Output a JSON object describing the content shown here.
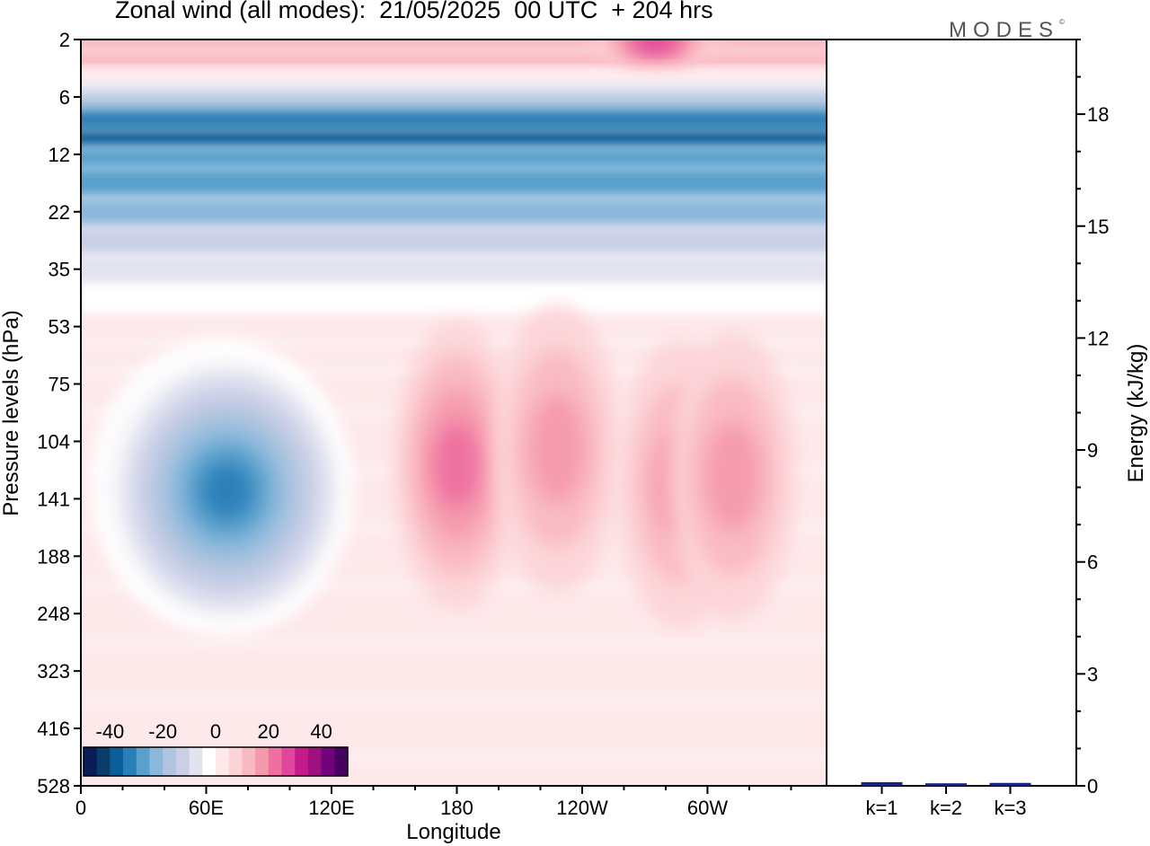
{
  "header": {
    "title": "Zonal wind (all modes):  21/05/2025  00 UTC  + 204 hrs",
    "logo": "MODES",
    "logo_mark": "©"
  },
  "colors": {
    "scale": [
      "#081d58",
      "#0b3d6b",
      "#0a5f98",
      "#2b7fb8",
      "#5aa0cc",
      "#8cb9db",
      "#b0c4df",
      "#c9cfe6",
      "#e3e3f0",
      "#ffffff",
      "#fde8ea",
      "#fcd4d8",
      "#f9b9c1",
      "#f59aad",
      "#ee6fa0",
      "#e0479a",
      "#c51b8a",
      "#9e0f80",
      "#73037a",
      "#4a0063"
    ],
    "bar": "#1a237e",
    "frame": "#000000"
  },
  "chart_data": [
    {
      "type": "heatmap",
      "title": "Zonal wind (all modes):  21/05/2025  00 UTC  + 204 hrs",
      "xlabel": "Longitude",
      "ylabel": "Pressure levels (hPa)",
      "x_ticks": [
        "0",
        "60E",
        "120E",
        "180",
        "120W",
        "60W"
      ],
      "x_tick_values": [
        0,
        60,
        120,
        180,
        240,
        300
      ],
      "xlim": [
        0,
        357
      ],
      "y_ticks": [
        "2",
        "6",
        "12",
        "22",
        "35",
        "53",
        "75",
        "104",
        "141",
        "188",
        "248",
        "323",
        "416",
        "528"
      ],
      "y_scale": "level index (ticks at every pressure level, top to bottom)",
      "colorbar": {
        "ticks": [
          "-40",
          "-20",
          "0",
          "20",
          "40"
        ],
        "tick_values": [
          -40,
          -20,
          0,
          20,
          40
        ],
        "range": [
          -50,
          50
        ],
        "step": 5,
        "placement": "bottom-left inside plot"
      },
      "bands": [
        {
          "p": 2,
          "u": 12
        },
        {
          "p": 3,
          "u": 10
        },
        {
          "p": 4,
          "u": 2
        },
        {
          "p": 5,
          "u": -8
        },
        {
          "p": 6,
          "u": -20
        },
        {
          "p": 8,
          "u": -32
        },
        {
          "p": 10,
          "u": -36
        },
        {
          "p": 12,
          "u": -30
        },
        {
          "p": 16,
          "u": -26
        },
        {
          "p": 22,
          "u": -24
        },
        {
          "p": 28,
          "u": -15
        },
        {
          "p": 35,
          "u": -8
        },
        {
          "p": 44,
          "u": -3
        },
        {
          "p": 53,
          "u": 0
        },
        {
          "p": 64,
          "u": 1
        },
        {
          "p": 75,
          "u": 1
        },
        {
          "p": 104,
          "u": 1
        },
        {
          "p": 141,
          "u": 1
        },
        {
          "p": 188,
          "u": 1
        },
        {
          "p": 248,
          "u": 0
        },
        {
          "p": 323,
          "u": 0
        },
        {
          "p": 416,
          "u": 0
        },
        {
          "p": 528,
          "u": 0
        }
      ],
      "features": [
        {
          "lon": 65,
          "p": 130,
          "u": -30
        },
        {
          "lon": 70,
          "p": 135,
          "u": -35
        },
        {
          "lon": 180,
          "p": 118,
          "u": 18
        },
        {
          "lon": 228,
          "p": 108,
          "u": 17
        },
        {
          "lon": 287,
          "p": 130,
          "u": 17
        },
        {
          "lon": 312,
          "p": 125,
          "u": 16
        },
        {
          "lon": 275,
          "p": 2,
          "u": 25
        }
      ]
    },
    {
      "type": "bar",
      "categories": [
        "k=1",
        "k=2",
        "k=3"
      ],
      "values": [
        0.05,
        0.02,
        0.03
      ],
      "ylabel": "Energy (kJ/kg)",
      "ylim": [
        0,
        20
      ],
      "y_ticks": [
        "0",
        "3",
        "6",
        "9",
        "12",
        "15",
        "18"
      ],
      "y_tick_values": [
        0,
        3,
        6,
        9,
        12,
        15,
        18
      ]
    }
  ]
}
